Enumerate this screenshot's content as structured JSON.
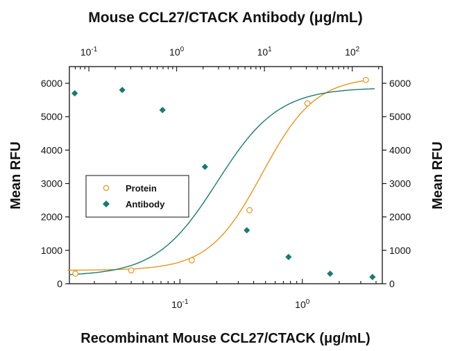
{
  "chart_data": {
    "type": "scatter",
    "title": "Mouse CCL27/CTACK Antibody (μg/mL)",
    "xlabel": "Recombinant Mouse CCL27/CTACK (μg/mL)",
    "ylabel": "Mean RFU",
    "y2label": "Mean RFU",
    "ylim": [
      0,
      6500
    ],
    "yticks": [
      "0",
      "1000",
      "2000",
      "3000",
      "4000",
      "5000",
      "6000"
    ],
    "x_bottom": {
      "scale": "log",
      "lim": [
        0.0125,
        4.5
      ],
      "ticks": [
        {
          "value": 0.1,
          "base": "10",
          "exp": "-1"
        },
        {
          "value": 1,
          "base": "10",
          "exp": "0"
        }
      ]
    },
    "x_top": {
      "scale": "log",
      "lim": [
        0.06,
        220
      ],
      "ticks": [
        {
          "value": 0.1,
          "base": "10",
          "exp": "-1"
        },
        {
          "value": 1,
          "base": "10",
          "exp": "0"
        },
        {
          "value": 10,
          "base": "10",
          "exp": "1"
        },
        {
          "value": 100,
          "base": "10",
          "exp": "2"
        }
      ]
    },
    "legend": {
      "position": "center-left",
      "entries": [
        "Protein",
        "Antibody"
      ]
    },
    "series": [
      {
        "name": "Protein",
        "axis": "bottom",
        "marker": "open-circle",
        "color": "#e8951c",
        "x": [
          0.014,
          0.04,
          0.125,
          0.37,
          1.1,
          3.3
        ],
        "y": [
          300,
          400,
          700,
          2200,
          5400,
          6100
        ],
        "fit": {
          "bottom": 400,
          "top": 6200,
          "ec50": 0.47,
          "hill": 2.0
        }
      },
      {
        "name": "Antibody",
        "axis": "top",
        "marker": "filled-diamond",
        "color": "#1a7a73",
        "x": [
          0.069,
          0.24,
          0.69,
          2.1,
          6.3,
          18.8,
          56,
          170
        ],
        "y": [
          5700,
          5800,
          5200,
          3500,
          1600,
          800,
          300,
          200
        ],
        "fit": {
          "bottom": 230,
          "top": 5870,
          "ec50": 2.9,
          "hill": 1.25
        }
      }
    ]
  }
}
